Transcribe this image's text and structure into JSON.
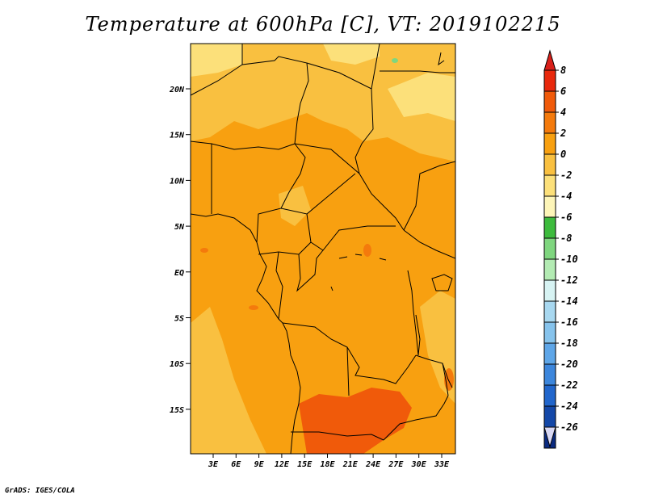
{
  "title": "Temperature at 600hPa [C], VT: 2019102215",
  "credit": "GrADS: IGES/COLA",
  "map": {
    "lat_ticks": [
      "20N",
      "15N",
      "10N",
      "5N",
      "EQ",
      "5S",
      "10S",
      "15S"
    ],
    "lon_ticks": [
      "3E",
      "6E",
      "9E",
      "12E",
      "15E",
      "18E",
      "21E",
      "24E",
      "27E",
      "30E",
      "33E"
    ]
  },
  "colorbar": {
    "labels": [
      "8",
      "6",
      "4",
      "2",
      "0",
      "-2",
      "-4",
      "-6",
      "-8",
      "-10",
      "-12",
      "-14",
      "-16",
      "-18",
      "-20",
      "-22",
      "-24",
      "-26"
    ],
    "colors": [
      "#e8280c",
      "#f05a0a",
      "#f47a0c",
      "#f8a010",
      "#f9c040",
      "#fce07a",
      "#fdf5b8",
      "#3dbb3d",
      "#7fd67f",
      "#b3ebb3",
      "#d7f3f3",
      "#a8d8f0",
      "#86c3ec",
      "#5ea6e8",
      "#3c86dc",
      "#2166cc",
      "#1448a8",
      "#0a2a80",
      "#0a1464"
    ],
    "top_color": "#d9201a",
    "bottom_color": "#d8d8f4"
  }
}
